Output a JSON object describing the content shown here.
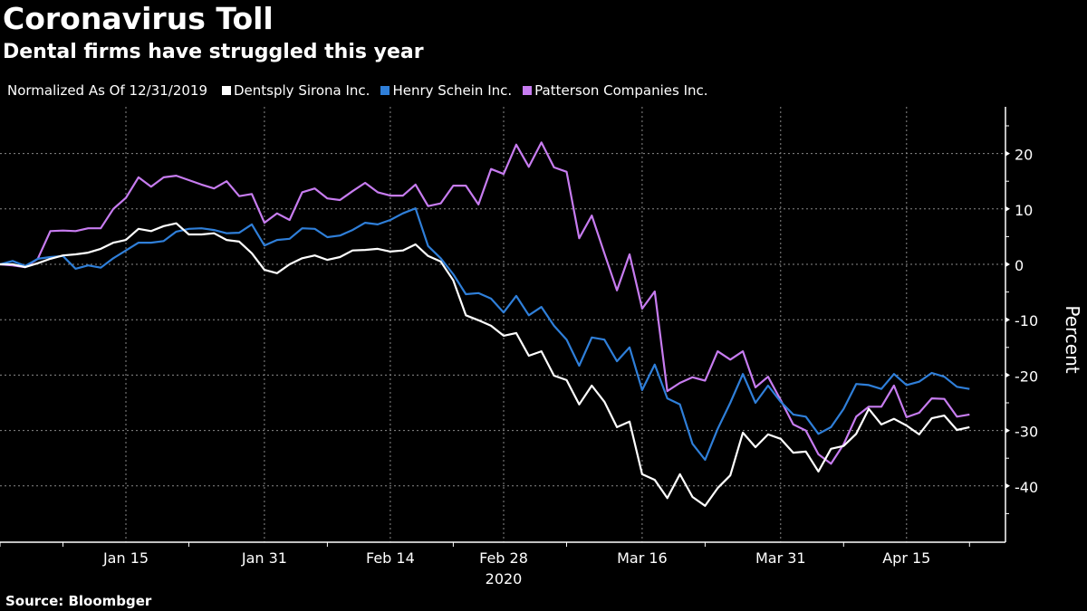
{
  "header": {
    "title": "Coronavirus Toll",
    "subtitle": "Dental firms have struggled this year"
  },
  "legend": {
    "note": "Normalized As Of 12/31/2019",
    "items": [
      {
        "label": "Dentsply Sirona Inc.",
        "color": "#ffffff"
      },
      {
        "label": "Henry Schein Inc.",
        "color": "#2f7fd9"
      },
      {
        "label": "Patterson Companies Inc.",
        "color": "#c77cf0"
      }
    ]
  },
  "footer": {
    "source": "Source: Bloombger"
  },
  "chart_data": {
    "type": "line",
    "title": "Coronavirus Toll",
    "subtitle": "Dental firms have struggled this year",
    "xlabel": "2020",
    "ylabel": "Percent",
    "x_tick_labels": [
      "Jan 15",
      "Jan 31",
      "Feb 14",
      "Feb 28",
      "Mar 16",
      "Mar 31",
      "Apr 15"
    ],
    "x_tick_index": [
      10,
      21,
      31,
      40,
      51,
      62,
      72
    ],
    "x_year_label": "2020",
    "x_points": 78,
    "x_range_dates": [
      "2019-12-31",
      "2020-04-22"
    ],
    "ylim": [
      -50,
      28
    ],
    "y_ticks": [
      20,
      10,
      0,
      -10,
      -20,
      -30,
      -40
    ],
    "grid": true,
    "legend_position": "top-left",
    "series": [
      {
        "name": "Dentsply Sirona Inc.",
        "color": "#ffffff",
        "values": [
          0,
          0,
          -0.5,
          0.2,
          1,
          1.6,
          1.8,
          2.1,
          2.8,
          3.9,
          4.4,
          6.4,
          6,
          6.9,
          7.4,
          5.4,
          5.4,
          5.6,
          4.4,
          4.1,
          2,
          -1,
          -1.6,
          0,
          1.1,
          1.6,
          0.8,
          1.3,
          2.5,
          2.6,
          2.8,
          2.3,
          2.5,
          3.6,
          1.5,
          0.5,
          -2.9,
          -9.2,
          -10.1,
          -11.1,
          -12.9,
          -12.4,
          -16.5,
          -15.7,
          -20.1,
          -20.9,
          -25.3,
          -21.9,
          -24.8,
          -29.4,
          -28.4,
          -37.9,
          -38.9,
          -42.2,
          -37.9,
          -42,
          -43.6,
          -40.4,
          -38.1,
          -30.4,
          -33,
          -30.7,
          -31.5,
          -34,
          -33.8,
          -37.4,
          -33.3,
          -32.8,
          -30.6,
          -26.1,
          -28.9,
          -27.9,
          -29.1,
          -30.7,
          -27.8,
          -27.3,
          -29.9,
          -29.4
        ]
      },
      {
        "name": "Henry Schein Inc.",
        "color": "#2f7fd9",
        "values": [
          0,
          0.6,
          -0.3,
          1,
          1.3,
          1.5,
          -0.8,
          -0.2,
          -0.6,
          1.1,
          2.5,
          3.9,
          3.9,
          4.2,
          5.9,
          6.4,
          6.5,
          6.2,
          5.6,
          5.7,
          7.2,
          3.4,
          4.4,
          4.6,
          6.5,
          6.4,
          4.9,
          5.2,
          6.2,
          7.5,
          7.2,
          8,
          9.2,
          10.1,
          3.3,
          1.1,
          -1.8,
          -5.4,
          -5.2,
          -6.2,
          -8.7,
          -5.7,
          -9.2,
          -7.7,
          -11.1,
          -13.6,
          -18.3,
          -13.2,
          -13.6,
          -17.5,
          -15,
          -22.7,
          -18.1,
          -24.2,
          -25.3,
          -32.4,
          -35.3,
          -29.7,
          -25,
          -19.8,
          -25,
          -21.9,
          -24.8,
          -27.1,
          -27.5,
          -30.6,
          -29.4,
          -26.1,
          -21.6,
          -21.8,
          -22.5,
          -19.8,
          -21.8,
          -21.2,
          -19.6,
          -20.3,
          -22.1,
          -22.5
        ]
      },
      {
        "name": "Patterson Companies Inc.",
        "color": "#c77cf0",
        "values": [
          0,
          -0.2,
          -0.5,
          1,
          6,
          6.1,
          6,
          6.5,
          6.5,
          10,
          12,
          15.7,
          14,
          15.7,
          16,
          15.2,
          14.4,
          13.7,
          15,
          12.3,
          12.7,
          7.5,
          9.2,
          8,
          13,
          13.7,
          11.9,
          11.6,
          13.2,
          14.7,
          13,
          12.4,
          12.4,
          14.4,
          10.5,
          11,
          14.2,
          14.2,
          10.8,
          17.2,
          16.3,
          21.6,
          17.6,
          22,
          17.5,
          16.7,
          4.7,
          8.8,
          2,
          -4.7,
          1.8,
          -8,
          -4.9,
          -22.9,
          -21.4,
          -20.4,
          -21,
          -15.7,
          -17.2,
          -15.7,
          -22.2,
          -20.3,
          -24.5,
          -28.9,
          -30,
          -34.3,
          -36,
          -32.5,
          -27.5,
          -25.7,
          -25.7,
          -21.9,
          -27.6,
          -26.8,
          -24.2,
          -24.3,
          -27.5,
          -27.1
        ]
      }
    ]
  }
}
